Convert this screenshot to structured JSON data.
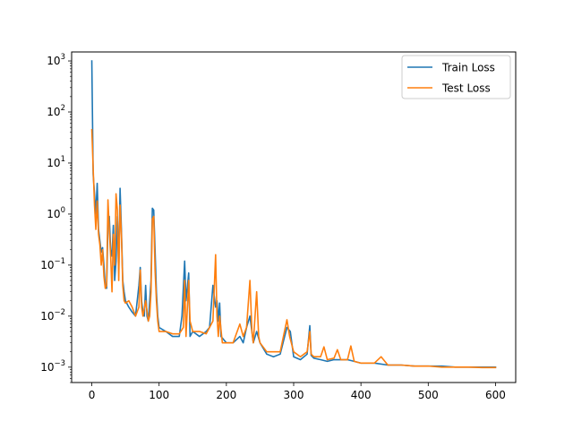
{
  "chart_data": {
    "type": "line",
    "title": "",
    "xlabel": "",
    "ylabel": "",
    "xlim": [
      -30,
      630
    ],
    "ylim": [
      0.0005,
      1500
    ],
    "yscale": "log",
    "grid": false,
    "legend_position": "top-right",
    "x_ticks": [
      {
        "value": 0,
        "label": "0"
      },
      {
        "value": 100,
        "label": "100"
      },
      {
        "value": 200,
        "label": "200"
      },
      {
        "value": 300,
        "label": "300"
      },
      {
        "value": 400,
        "label": "400"
      },
      {
        "value": 500,
        "label": "500"
      },
      {
        "value": 600,
        "label": "600"
      }
    ],
    "y_ticks": [
      {
        "value": 0.001,
        "base": "10",
        "exp": "−3"
      },
      {
        "value": 0.01,
        "base": "10",
        "exp": "−2"
      },
      {
        "value": 0.1,
        "base": "10",
        "exp": "−1"
      },
      {
        "value": 1,
        "base": "10",
        "exp": "0"
      },
      {
        "value": 10,
        "base": "10",
        "exp": "1"
      },
      {
        "value": 100,
        "base": "10",
        "exp": "2"
      },
      {
        "value": 1000,
        "base": "10",
        "exp": "3"
      }
    ],
    "series": [
      {
        "name": "Train Loss",
        "color": "#1f77b4",
        "points": [
          [
            0,
            1000
          ],
          [
            2,
            6
          ],
          [
            4,
            2.5
          ],
          [
            6,
            1
          ],
          [
            8,
            4
          ],
          [
            10,
            0.5
          ],
          [
            12,
            0.3
          ],
          [
            14,
            0.18
          ],
          [
            16,
            0.22
          ],
          [
            18,
            0.1
          ],
          [
            20,
            0.04
          ],
          [
            22,
            0.035
          ],
          [
            24,
            0.6
          ],
          [
            26,
            0.9
          ],
          [
            28,
            0.2
          ],
          [
            30,
            0.15
          ],
          [
            32,
            0.6
          ],
          [
            34,
            0.05
          ],
          [
            36,
            0.12
          ],
          [
            38,
            0.9
          ],
          [
            40,
            0.08
          ],
          [
            42,
            3.2
          ],
          [
            44,
            0.5
          ],
          [
            46,
            0.05
          ],
          [
            48,
            0.03
          ],
          [
            50,
            0.02
          ],
          [
            55,
            0.015
          ],
          [
            60,
            0.012
          ],
          [
            65,
            0.01
          ],
          [
            70,
            0.04
          ],
          [
            72,
            0.09
          ],
          [
            74,
            0.02
          ],
          [
            76,
            0.012
          ],
          [
            78,
            0.01
          ],
          [
            80,
            0.04
          ],
          [
            82,
            0.01
          ],
          [
            84,
            0.008
          ],
          [
            88,
            0.05
          ],
          [
            90,
            1.3
          ],
          [
            92,
            1.2
          ],
          [
            94,
            0.2
          ],
          [
            96,
            0.03
          ],
          [
            98,
            0.01
          ],
          [
            100,
            0.006
          ],
          [
            110,
            0.005
          ],
          [
            120,
            0.004
          ],
          [
            130,
            0.004
          ],
          [
            134,
            0.01
          ],
          [
            138,
            0.12
          ],
          [
            140,
            0.02
          ],
          [
            144,
            0.07
          ],
          [
            146,
            0.004
          ],
          [
            150,
            0.005
          ],
          [
            160,
            0.004
          ],
          [
            170,
            0.005
          ],
          [
            175,
            0.006
          ],
          [
            180,
            0.04
          ],
          [
            184,
            0.015
          ],
          [
            186,
            0.02
          ],
          [
            188,
            0.008
          ],
          [
            190,
            0.018
          ],
          [
            192,
            0.004
          ],
          [
            200,
            0.003
          ],
          [
            210,
            0.003
          ],
          [
            220,
            0.004
          ],
          [
            225,
            0.003
          ],
          [
            230,
            0.006
          ],
          [
            235,
            0.01
          ],
          [
            240,
            0.003
          ],
          [
            245,
            0.005
          ],
          [
            250,
            0.003
          ],
          [
            260,
            0.0018
          ],
          [
            270,
            0.0016
          ],
          [
            280,
            0.0018
          ],
          [
            290,
            0.006
          ],
          [
            295,
            0.005
          ],
          [
            300,
            0.0016
          ],
          [
            310,
            0.0014
          ],
          [
            320,
            0.0018
          ],
          [
            324,
            0.0065
          ],
          [
            326,
            0.0017
          ],
          [
            330,
            0.0015
          ],
          [
            340,
            0.0014
          ],
          [
            350,
            0.0013
          ],
          [
            360,
            0.0014
          ],
          [
            370,
            0.0014
          ],
          [
            380,
            0.0014
          ],
          [
            390,
            0.0013
          ],
          [
            400,
            0.0012
          ],
          [
            420,
            0.0012
          ],
          [
            440,
            0.0011
          ],
          [
            460,
            0.0011
          ],
          [
            480,
            0.00105
          ],
          [
            500,
            0.00105
          ],
          [
            520,
            0.00105
          ],
          [
            540,
            0.001
          ],
          [
            560,
            0.001
          ],
          [
            580,
            0.001
          ],
          [
            600,
            0.001
          ]
        ]
      },
      {
        "name": "Test Loss",
        "color": "#ff7f0e",
        "points": [
          [
            0,
            45
          ],
          [
            2,
            8
          ],
          [
            4,
            1.5
          ],
          [
            6,
            0.5
          ],
          [
            8,
            1.8
          ],
          [
            10,
            0.4
          ],
          [
            12,
            0.25
          ],
          [
            14,
            0.1
          ],
          [
            16,
            0.2
          ],
          [
            18,
            0.06
          ],
          [
            20,
            0.035
          ],
          [
            22,
            0.04
          ],
          [
            24,
            1.9
          ],
          [
            26,
            0.5
          ],
          [
            28,
            0.15
          ],
          [
            30,
            0.03
          ],
          [
            32,
            0.4
          ],
          [
            34,
            0.1
          ],
          [
            36,
            2.5
          ],
          [
            38,
            1.2
          ],
          [
            40,
            0.05
          ],
          [
            42,
            1.5
          ],
          [
            44,
            0.4
          ],
          [
            46,
            0.04
          ],
          [
            48,
            0.02
          ],
          [
            50,
            0.018
          ],
          [
            55,
            0.02
          ],
          [
            60,
            0.015
          ],
          [
            65,
            0.01
          ],
          [
            70,
            0.015
          ],
          [
            72,
            0.08
          ],
          [
            74,
            0.015
          ],
          [
            76,
            0.01
          ],
          [
            80,
            0.02
          ],
          [
            84,
            0.008
          ],
          [
            86,
            0.01
          ],
          [
            88,
            0.03
          ],
          [
            90,
            0.8
          ],
          [
            92,
            0.9
          ],
          [
            94,
            0.08
          ],
          [
            96,
            0.02
          ],
          [
            98,
            0.008
          ],
          [
            100,
            0.005
          ],
          [
            110,
            0.005
          ],
          [
            120,
            0.0045
          ],
          [
            130,
            0.0045
          ],
          [
            136,
            0.006
          ],
          [
            138,
            0.05
          ],
          [
            140,
            0.004
          ],
          [
            144,
            0.05
          ],
          [
            146,
            0.008
          ],
          [
            150,
            0.005
          ],
          [
            160,
            0.005
          ],
          [
            170,
            0.0045
          ],
          [
            175,
            0.006
          ],
          [
            180,
            0.008
          ],
          [
            184,
            0.16
          ],
          [
            186,
            0.01
          ],
          [
            188,
            0.004
          ],
          [
            190,
            0.01
          ],
          [
            194,
            0.003
          ],
          [
            200,
            0.003
          ],
          [
            210,
            0.003
          ],
          [
            220,
            0.007
          ],
          [
            225,
            0.004
          ],
          [
            230,
            0.006
          ],
          [
            235,
            0.05
          ],
          [
            238,
            0.005
          ],
          [
            240,
            0.003
          ],
          [
            245,
            0.03
          ],
          [
            248,
            0.004
          ],
          [
            250,
            0.003
          ],
          [
            260,
            0.002
          ],
          [
            270,
            0.002
          ],
          [
            280,
            0.002
          ],
          [
            290,
            0.0085
          ],
          [
            294,
            0.004
          ],
          [
            300,
            0.002
          ],
          [
            310,
            0.0016
          ],
          [
            320,
            0.002
          ],
          [
            324,
            0.005
          ],
          [
            326,
            0.0018
          ],
          [
            330,
            0.0016
          ],
          [
            340,
            0.0016
          ],
          [
            345,
            0.0025
          ],
          [
            350,
            0.0014
          ],
          [
            360,
            0.0015
          ],
          [
            365,
            0.0022
          ],
          [
            370,
            0.0014
          ],
          [
            380,
            0.0014
          ],
          [
            385,
            0.0026
          ],
          [
            390,
            0.0013
          ],
          [
            400,
            0.0012
          ],
          [
            420,
            0.0012
          ],
          [
            430,
            0.0016
          ],
          [
            440,
            0.0011
          ],
          [
            460,
            0.0011
          ],
          [
            480,
            0.00105
          ],
          [
            500,
            0.00105
          ],
          [
            520,
            0.001
          ],
          [
            540,
            0.001
          ],
          [
            560,
            0.001
          ],
          [
            580,
            0.00098
          ],
          [
            600,
            0.00098
          ]
        ]
      }
    ]
  }
}
